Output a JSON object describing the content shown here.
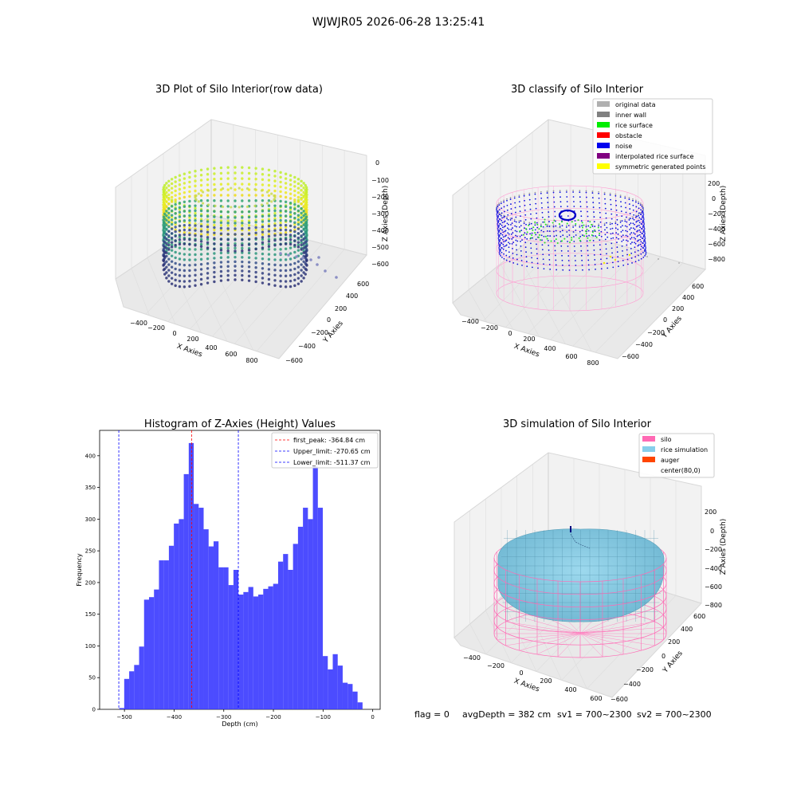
{
  "suptitle": "WJWJR05 2026-06-28 13:25:41",
  "footer": {
    "flag": "flag = 0",
    "avg_depth": "avgDepth = 382 cm",
    "sv1": "sv1 = 700~2300",
    "sv2": "sv2 = 700~2300"
  },
  "panels": {
    "raw": {
      "title": "3D Plot of Silo Interior(row data)",
      "xlabel": "X Axies",
      "ylabel": "Y Axies",
      "zlabel": "Z Axies (Depth)",
      "xticks": [
        "−400",
        "−200",
        "0",
        "200",
        "400",
        "600",
        "800"
      ],
      "yticks": [
        "−600",
        "−400",
        "−200",
        "0",
        "200",
        "400",
        "600"
      ],
      "zticks": [
        "0",
        "−100",
        "−200",
        "−300",
        "−400",
        "−500",
        "−600"
      ]
    },
    "classify": {
      "title": "3D classify of Silo Interior",
      "xlabel": "X Axies",
      "ylabel": "Y Axies",
      "zlabel": "Z Axies (Depth)",
      "xticks": [
        "−400",
        "−200",
        "0",
        "200",
        "400",
        "600",
        "800"
      ],
      "yticks": [
        "−600",
        "−400",
        "−200",
        "0",
        "200",
        "400",
        "600"
      ],
      "zticks": [
        "200",
        "0",
        "−200",
        "−400",
        "−600",
        "−800"
      ],
      "legend": [
        {
          "label": "original data",
          "color": "#b0b0b0"
        },
        {
          "label": "inner wall",
          "color": "#808080"
        },
        {
          "label": "rice surface",
          "color": "#00ee00"
        },
        {
          "label": "obstacle",
          "color": "#ff0000"
        },
        {
          "label": "noise",
          "color": "#0000ee"
        },
        {
          "label": "interpolated rice surface",
          "color": "#800080"
        },
        {
          "label": "symmetric generated points",
          "color": "#ffff00"
        }
      ]
    },
    "simulation": {
      "title": "3D simulation of Silo Interior",
      "xlabel": "X Axies",
      "ylabel": "Y Axies",
      "zlabel": "Z Axies (Depth)",
      "xticks": [
        "−400",
        "−200",
        "0",
        "200",
        "400",
        "600"
      ],
      "yticks": [
        "−600",
        "−400",
        "−200",
        "0",
        "200",
        "400",
        "600"
      ],
      "zticks": [
        "200",
        "0",
        "−200",
        "−400",
        "−600",
        "−800"
      ],
      "legend": [
        {
          "label": "silo",
          "color": "#ff69b4"
        },
        {
          "label": "rice simulation",
          "color": "#87ceeb"
        },
        {
          "label": "auger",
          "color": "#ff4500"
        },
        {
          "label": "center(80,0)",
          "color": ""
        }
      ]
    }
  },
  "chart_data": {
    "type": "bar",
    "title": "Histogram of Z-Axies (Height) Values",
    "xlabel": "Depth (cm)",
    "ylabel": "Frequency",
    "xlim": [
      -550,
      15
    ],
    "ylim": [
      0,
      440
    ],
    "xticks": [
      -500,
      -400,
      -300,
      -200,
      -100,
      0
    ],
    "xtick_labels": [
      "−500",
      "−400",
      "−300",
      "−200",
      "−100",
      "0"
    ],
    "yticks": [
      0,
      50,
      100,
      150,
      200,
      250,
      300,
      350,
      400
    ],
    "yticks_labels": [
      "0",
      "50",
      "100",
      "150",
      "200",
      "250",
      "300",
      "350",
      "400"
    ],
    "bin_start": -510.5,
    "bin_width": 10.0,
    "counts": [
      2,
      48,
      60,
      70,
      99,
      173,
      177,
      189,
      235,
      235,
      258,
      293,
      300,
      371,
      420,
      324,
      318,
      284,
      257,
      265,
      224,
      224,
      196,
      220,
      181,
      185,
      193,
      178,
      181,
      190,
      194,
      198,
      233,
      245,
      220,
      261,
      288,
      318,
      300,
      384,
      318,
      84,
      63,
      87,
      69,
      42,
      40,
      28,
      11
    ],
    "color": "#3333ff",
    "vlines": [
      {
        "label": "first_peak: -364.84 cm",
        "x": -364.84,
        "color": "#ff0000"
      },
      {
        "label": "Upper_limit: -270.65 cm",
        "x": -270.65,
        "color": "#0000ff"
      },
      {
        "label": "Lower_limit: -511.37 cm",
        "x": -511.37,
        "color": "#0000ff"
      }
    ],
    "legend_position": "top-right"
  }
}
